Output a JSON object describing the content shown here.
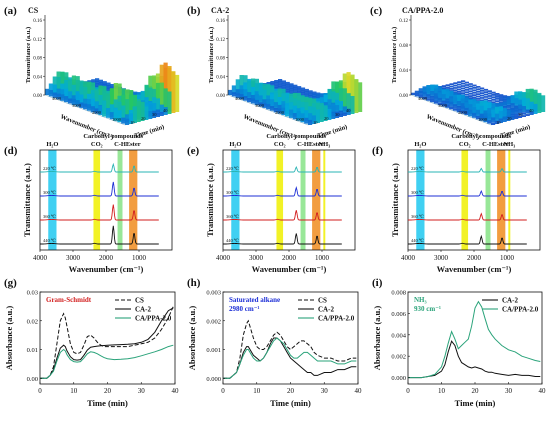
{
  "panels_3d": [
    {
      "letter": "(a)",
      "title": "CS",
      "zlabel": "Transmittance (a.u.)",
      "xlabel": "Wavenumber (cm⁻¹)",
      "ylabel": "Time (min)",
      "zticks": [
        "0.16",
        "0.12",
        "0.08",
        "0.04",
        "0.00"
      ],
      "xticks": [
        "4000",
        "3000",
        "2000",
        "1000"
      ],
      "yticks": [
        "10",
        "20",
        "30",
        "40"
      ]
    },
    {
      "letter": "(b)",
      "title": "CA-2",
      "zlabel": "Transmittance (a.u.)",
      "xlabel": "Wavenumber (cm⁻¹)",
      "ylabel": "Time (min)",
      "zticks": [
        "0.16",
        "0.12",
        "0.08",
        "0.04",
        "0.00"
      ],
      "xticks": [
        "4000",
        "3000",
        "2000",
        "1000"
      ],
      "yticks": [
        "10",
        "20",
        "30",
        "40"
      ]
    },
    {
      "letter": "(c)",
      "title": "CA/PPA-2.0",
      "zlabel": "Transmittance (a.u.)",
      "xlabel": "Wavenumber (cm⁻¹)",
      "ylabel": "Time (min)",
      "zticks": [
        "0.12",
        "0.08",
        "0.04",
        "0.00"
      ],
      "xticks": [
        "4000",
        "3000",
        "2000",
        "1000"
      ],
      "yticks": [
        "10",
        "20",
        "30",
        "40"
      ]
    }
  ],
  "chart_data": [
    {
      "type": "line",
      "panel": "(d)",
      "xlabel": "Wavenumber (cm⁻¹)",
      "ylabel": "Transmittance (a.u.)",
      "xlim": [
        4000,
        0
      ],
      "x_reversed": true,
      "xticks": [
        4000,
        3000,
        2000,
        1000
      ],
      "bands": [
        {
          "label": "H₂O",
          "from": 3750,
          "to": 3500,
          "color": "#1ec8f0"
        },
        {
          "label": "CO₂",
          "from": 2380,
          "to": 2180,
          "color": "#f0f000"
        },
        {
          "label": "C-H",
          "from": 1650,
          "to": 1500,
          "color": "#86e386"
        },
        {
          "label": "Ester",
          "from": 1300,
          "to": 1050,
          "color": "#f08c1e"
        }
      ],
      "top_labels": [
        "Carbonyl compounds"
      ],
      "series": [
        {
          "name": "220 ℃",
          "color": "#2ab4b4",
          "peaks": [
            [
              1780,
              0.55
            ],
            [
              1150,
              0.45
            ]
          ]
        },
        {
          "name": "300 ℃",
          "color": "#1d2fd6",
          "peaks": [
            [
              1780,
              1.0
            ],
            [
              1150,
              0.6
            ]
          ]
        },
        {
          "name": "360 ℃",
          "color": "#d21e1e",
          "peaks": [
            [
              1780,
              1.1
            ],
            [
              1150,
              0.7
            ]
          ]
        },
        {
          "name": "440 ℃",
          "color": "#111111",
          "peaks": [
            [
              1780,
              1.3
            ],
            [
              1150,
              0.8
            ]
          ]
        }
      ]
    },
    {
      "type": "line",
      "panel": "(e)",
      "xlabel": "Wavenumber (cm⁻¹)",
      "ylabel": "Transmittance (a.u.)",
      "xlim": [
        4000,
        0
      ],
      "x_reversed": true,
      "xticks": [
        4000,
        3000,
        2000,
        1000
      ],
      "bands": [
        {
          "label": "H₂O",
          "from": 3750,
          "to": 3500,
          "color": "#1ec8f0"
        },
        {
          "label": "CO₂",
          "from": 2380,
          "to": 2180,
          "color": "#f0f000"
        },
        {
          "label": "C-H",
          "from": 1650,
          "to": 1500,
          "color": "#86e386"
        },
        {
          "label": "Ester",
          "from": 1300,
          "to": 1050,
          "color": "#f08c1e"
        },
        {
          "label": "NH₃",
          "from": 960,
          "to": 900,
          "color": "#f0f000"
        }
      ],
      "top_labels": [
        "Carbonyl compounds"
      ],
      "series": [
        {
          "name": "220 ℃",
          "color": "#2ab4b4",
          "peaks": [
            [
              1780,
              0.35
            ],
            [
              1150,
              0.35
            ]
          ]
        },
        {
          "name": "300 ℃",
          "color": "#1d2fd6",
          "peaks": [
            [
              1780,
              0.6
            ],
            [
              1150,
              0.5
            ]
          ]
        },
        {
          "name": "360 ℃",
          "color": "#d21e1e",
          "peaks": [
            [
              1780,
              0.7
            ],
            [
              1150,
              0.55
            ]
          ]
        },
        {
          "name": "440 ℃",
          "color": "#111111",
          "peaks": [
            [
              1780,
              0.75
            ],
            [
              1150,
              0.6
            ]
          ]
        }
      ]
    },
    {
      "type": "line",
      "panel": "(f)",
      "xlabel": "Wavenumber (cm⁻¹)",
      "ylabel": "Transmittance (a.u.)",
      "xlim": [
        4000,
        0
      ],
      "x_reversed": true,
      "xticks": [
        4000,
        3000,
        2000,
        1000
      ],
      "bands": [
        {
          "label": "H₂O",
          "from": 3750,
          "to": 3500,
          "color": "#1ec8f0"
        },
        {
          "label": "CO₂",
          "from": 2380,
          "to": 2180,
          "color": "#f0f000"
        },
        {
          "label": "C-H",
          "from": 1650,
          "to": 1500,
          "color": "#86e386"
        },
        {
          "label": "Ester",
          "from": 1300,
          "to": 1050,
          "color": "#f08c1e"
        },
        {
          "label": "NH₃",
          "from": 960,
          "to": 900,
          "color": "#f0f000"
        }
      ],
      "top_labels": [
        "Carbonyl compounds"
      ],
      "series": [
        {
          "name": "220 ℃",
          "color": "#2ab4b4",
          "peaks": [
            [
              1780,
              0.25
            ],
            [
              1150,
              0.25
            ]
          ]
        },
        {
          "name": "300 ℃",
          "color": "#1d2fd6",
          "peaks": [
            [
              1780,
              0.35
            ],
            [
              1150,
              0.35
            ]
          ]
        },
        {
          "name": "360 ℃",
          "color": "#d21e1e",
          "peaks": [
            [
              1780,
              0.45
            ],
            [
              1150,
              0.4
            ]
          ]
        },
        {
          "name": "440 ℃",
          "color": "#111111",
          "peaks": [
            [
              1780,
              0.55
            ],
            [
              1150,
              0.45
            ]
          ]
        }
      ]
    },
    {
      "type": "line",
      "panel": "(g)",
      "annotation": "Gram-Schmidt",
      "annotation_color": "#d21e1e",
      "xlabel": "Time (min)",
      "ylabel": "Absorbance (a.u.)",
      "xlim": [
        0,
        40
      ],
      "ylim": [
        -0.002,
        0.03
      ],
      "xticks": [
        0,
        10,
        20,
        30,
        40
      ],
      "yticks": [
        "0.00",
        "0.01",
        "0.02",
        "0.03"
      ],
      "series": [
        {
          "name": "CS",
          "color": "#111111",
          "dash": "4,2",
          "x": [
            0,
            1,
            2,
            3,
            4,
            5,
            6,
            7,
            7.5,
            8,
            9,
            10,
            11,
            12,
            13,
            14,
            15,
            16,
            17,
            18,
            19,
            20,
            22,
            24,
            26,
            28,
            30,
            32,
            34,
            36,
            38,
            39.5
          ],
          "y": [
            0.0,
            0.0,
            0.0,
            0.001,
            0.004,
            0.012,
            0.02,
            0.0225,
            0.021,
            0.018,
            0.012,
            0.009,
            0.0085,
            0.009,
            0.0115,
            0.0145,
            0.015,
            0.014,
            0.0125,
            0.0115,
            0.011,
            0.011,
            0.011,
            0.011,
            0.011,
            0.0115,
            0.012,
            0.0125,
            0.014,
            0.017,
            0.021,
            0.025
          ]
        },
        {
          "name": "CA-2",
          "color": "#111111",
          "x": [
            0,
            1,
            2,
            3,
            4,
            5,
            6,
            7,
            7.5,
            8,
            9,
            10,
            11,
            12,
            13,
            14,
            15,
            16,
            17,
            18,
            19,
            20,
            22,
            24,
            26,
            28,
            30,
            32,
            34,
            36,
            38,
            39.5
          ],
          "y": [
            0.0,
            0.0,
            0.0,
            0.001,
            0.003,
            0.007,
            0.0105,
            0.0115,
            0.011,
            0.0095,
            0.0075,
            0.0065,
            0.0063,
            0.0065,
            0.008,
            0.0098,
            0.0108,
            0.011,
            0.0112,
            0.0113,
            0.0114,
            0.0115,
            0.0116,
            0.0117,
            0.0118,
            0.012,
            0.0125,
            0.0135,
            0.016,
            0.02,
            0.0235,
            0.0245
          ]
        },
        {
          "name": "CA/PPA-2.0",
          "color": "#2aa37a",
          "x": [
            0,
            1,
            2,
            3,
            4,
            5,
            6,
            7,
            7.5,
            8,
            9,
            10,
            11,
            12,
            13,
            14,
            15,
            16,
            17,
            18,
            19,
            20,
            22,
            24,
            26,
            28,
            30,
            32,
            34,
            36,
            38,
            39.5
          ],
          "y": [
            0.0,
            0.0,
            0.0,
            0.001,
            0.0025,
            0.006,
            0.009,
            0.01,
            0.0095,
            0.0082,
            0.0065,
            0.0058,
            0.0056,
            0.0058,
            0.007,
            0.0085,
            0.0092,
            0.009,
            0.0085,
            0.0078,
            0.0072,
            0.0068,
            0.0065,
            0.0066,
            0.0068,
            0.0072,
            0.0078,
            0.0085,
            0.0092,
            0.01,
            0.011,
            0.0115
          ]
        }
      ]
    },
    {
      "type": "line",
      "panel": "(h)",
      "annotation": "Saturated alkane\n2980 cm⁻¹",
      "annotation_color": "#1d2fd6",
      "xlabel": "Time (min)",
      "ylabel": "Absorbance (a.u.)",
      "xlim": [
        0,
        40
      ],
      "ylim": [
        -0.0002,
        0.003
      ],
      "xticks": [
        0,
        10,
        20,
        30,
        40
      ],
      "yticks": [
        "0.000",
        "0.001",
        "0.002",
        "0.003"
      ],
      "series": [
        {
          "name": "CS",
          "color": "#111111",
          "dash": "4,2",
          "x": [
            0,
            2,
            4,
            5,
            6,
            7,
            7.5,
            8,
            9,
            10,
            11,
            12,
            13,
            14,
            15,
            16,
            17,
            18,
            19,
            20,
            21,
            22,
            23,
            24,
            25,
            26,
            27,
            28,
            30,
            32,
            34,
            36,
            38,
            39.5
          ],
          "y": [
            0.0,
            0.0,
            0.0002,
            0.0007,
            0.0015,
            0.0019,
            0.002,
            0.0018,
            0.0014,
            0.0011,
            0.001,
            0.001,
            0.0011,
            0.0013,
            0.0015,
            0.0016,
            0.0015,
            0.0013,
            0.0011,
            0.001,
            0.0011,
            0.0012,
            0.0013,
            0.0013,
            0.0012,
            0.0011,
            0.0009,
            0.0008,
            0.0007,
            0.0007,
            0.0006,
            0.0006,
            0.0007,
            0.0007
          ]
        },
        {
          "name": "CA-2",
          "color": "#111111",
          "x": [
            0,
            2,
            4,
            5,
            6,
            7,
            7.5,
            8,
            9,
            10,
            11,
            12,
            13,
            14,
            15,
            16,
            17,
            18,
            19,
            20,
            21,
            22,
            23,
            24,
            25,
            26,
            27,
            28,
            30,
            32,
            34,
            36,
            38,
            39.5
          ],
          "y": [
            0.0,
            0.0,
            0.0002,
            0.0005,
            0.0009,
            0.0011,
            0.0011,
            0.001,
            0.0008,
            0.0007,
            0.0006,
            0.0007,
            0.0009,
            0.0012,
            0.0014,
            0.0014,
            0.0013,
            0.0011,
            0.0009,
            0.0007,
            0.0006,
            0.0005,
            0.0004,
            0.0003,
            0.0002,
            0.0002,
            0.0001,
            0.0001,
            0.0002,
            0.0002,
            0.0003,
            0.0003,
            0.0004,
            0.0004
          ]
        },
        {
          "name": "CA/PPA-2.0",
          "color": "#2aa37a",
          "x": [
            0,
            2,
            4,
            5,
            6,
            7,
            7.5,
            8,
            9,
            10,
            11,
            12,
            13,
            14,
            15,
            16,
            17,
            18,
            19,
            20,
            21,
            22,
            23,
            24,
            25,
            26,
            27,
            28,
            30,
            32,
            34,
            36,
            38,
            39.5
          ],
          "y": [
            0.0,
            0.0,
            0.0002,
            0.0005,
            0.0008,
            0.001,
            0.001,
            0.0009,
            0.0007,
            0.0006,
            0.0006,
            0.0007,
            0.0009,
            0.0011,
            0.0013,
            0.0014,
            0.0013,
            0.0012,
            0.001,
            0.0008,
            0.0007,
            0.0007,
            0.0008,
            0.0009,
            0.0009,
            0.0008,
            0.0007,
            0.0006,
            0.0006,
            0.0006,
            0.0005,
            0.0005,
            0.0006,
            0.0006
          ]
        }
      ]
    },
    {
      "type": "line",
      "panel": "(i)",
      "annotation": "NH₃\n930 cm⁻¹",
      "annotation_color": "#2aa37a",
      "xlabel": "Time (min)",
      "ylabel": "Absorbance (a.u.)",
      "xlim": [
        0,
        40
      ],
      "ylim": [
        -0.0006,
        0.008
      ],
      "xticks": [
        0,
        10,
        20,
        30,
        40
      ],
      "yticks": [
        "0.000",
        "0.002",
        "0.004",
        "0.006",
        "0.008"
      ],
      "series": [
        {
          "name": "CA-2",
          "color": "#111111",
          "x": [
            0,
            2,
            4,
            6,
            8,
            10,
            11,
            12,
            13,
            14,
            15,
            16,
            17,
            18,
            19,
            20,
            21,
            22,
            23,
            24,
            25,
            26,
            28,
            30,
            32,
            34,
            36,
            38,
            39.5
          ],
          "y": [
            0.0,
            0.0,
            0.0,
            0.0001,
            0.0002,
            0.0006,
            0.0012,
            0.0024,
            0.0034,
            0.003,
            0.002,
            0.0014,
            0.0012,
            0.001,
            0.0009,
            0.001,
            0.0009,
            0.0008,
            0.0006,
            0.0005,
            0.0005,
            0.0004,
            0.0003,
            0.0002,
            0.0003,
            0.0002,
            0.0002,
            0.0001,
            0.0001
          ]
        },
        {
          "name": "CA/PPA-2.0",
          "color": "#2aa37a",
          "x": [
            0,
            2,
            4,
            6,
            8,
            10,
            11,
            12,
            13,
            14,
            15,
            16,
            17,
            18,
            19,
            20,
            21,
            22,
            23,
            24,
            25,
            26,
            28,
            30,
            32,
            34,
            36,
            38,
            39.5
          ],
          "y": [
            0.0,
            0.0,
            0.0,
            0.0001,
            0.0003,
            0.001,
            0.002,
            0.0032,
            0.0043,
            0.0036,
            0.0027,
            0.003,
            0.0033,
            0.0036,
            0.0048,
            0.0065,
            0.0071,
            0.0066,
            0.0055,
            0.0045,
            0.004,
            0.0036,
            0.003,
            0.0026,
            0.0024,
            0.002,
            0.0018,
            0.0016,
            0.0015
          ]
        }
      ]
    }
  ]
}
